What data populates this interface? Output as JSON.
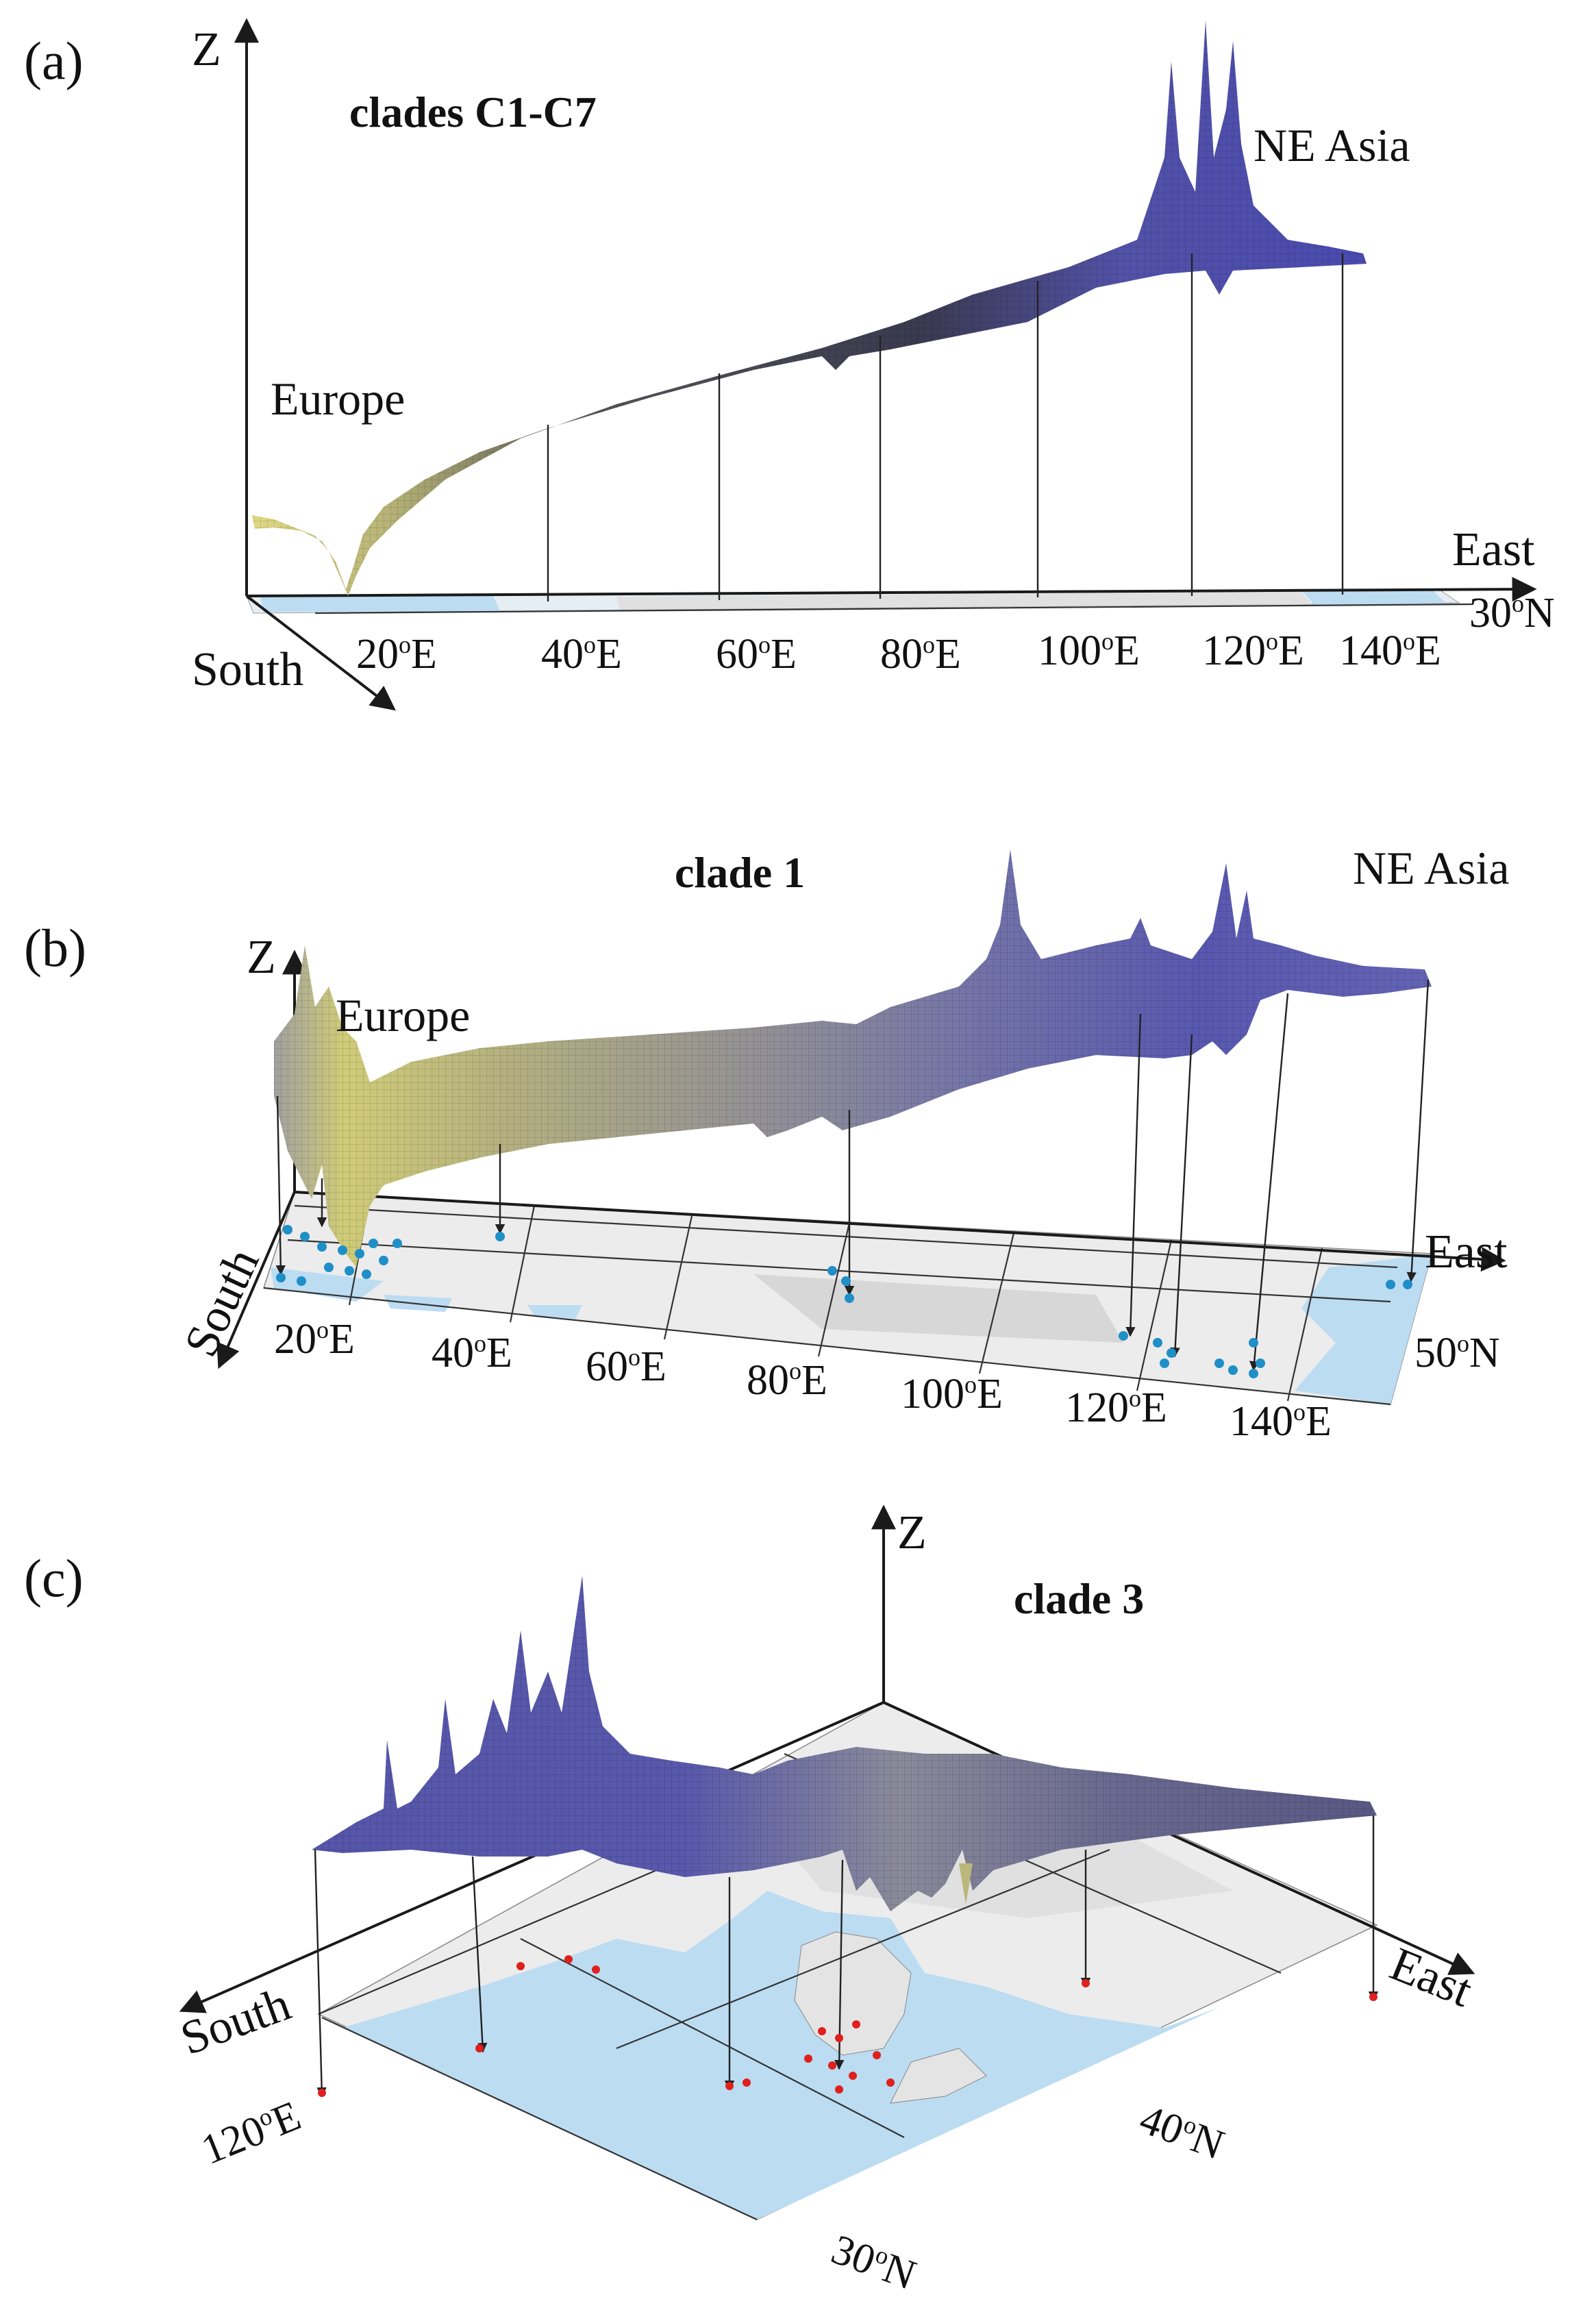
{
  "panels": [
    {
      "letter": "(a)",
      "title": "clades C1-C7",
      "axis_z": "Z",
      "axis_east": "East",
      "axis_south": "South",
      "lat_label": "30",
      "lat_suffix": "N",
      "regions": [
        "Europe",
        "NE Asia"
      ],
      "ticks": [
        {
          "num": "20",
          "suf": "E"
        },
        {
          "num": "40",
          "suf": "E"
        },
        {
          "num": "60",
          "suf": "E"
        },
        {
          "num": "80",
          "suf": "E"
        },
        {
          "num": "100",
          "suf": "E"
        },
        {
          "num": "120",
          "suf": "E"
        },
        {
          "num": "140",
          "suf": "E"
        }
      ]
    },
    {
      "letter": "(b)",
      "title": "clade 1",
      "axis_z": "Z",
      "axis_east": "East",
      "axis_south": "South",
      "lat_label": "50",
      "lat_suffix": "N",
      "regions": [
        "Europe",
        "NE Asia"
      ],
      "ticks": [
        {
          "num": "20",
          "suf": "E"
        },
        {
          "num": "40",
          "suf": "E"
        },
        {
          "num": "60",
          "suf": "E"
        },
        {
          "num": "80",
          "suf": "E"
        },
        {
          "num": "100",
          "suf": "E"
        },
        {
          "num": "120",
          "suf": "E"
        },
        {
          "num": "140",
          "suf": "E"
        }
      ]
    },
    {
      "letter": "(c)",
      "title": "clade 3",
      "axis_z": "Z",
      "axis_east": "East",
      "axis_south": "South",
      "lon_label": "120",
      "lon_suffix": "E",
      "lat_labels": [
        {
          "num": "40",
          "suf": "N"
        },
        {
          "num": "30",
          "suf": "N"
        }
      ]
    }
  ],
  "degree_symbol": "o",
  "colors": {
    "surface_europe": "#d8d27a",
    "surface_mid": "#8f8fa6",
    "surface_asia": "#5a5ab0",
    "surface_dark": "#4040a0",
    "sea": "#bcdcf2",
    "land": "#ebebeb",
    "sample_blue": "#1f8fc8",
    "sample_red": "#e0201c"
  }
}
